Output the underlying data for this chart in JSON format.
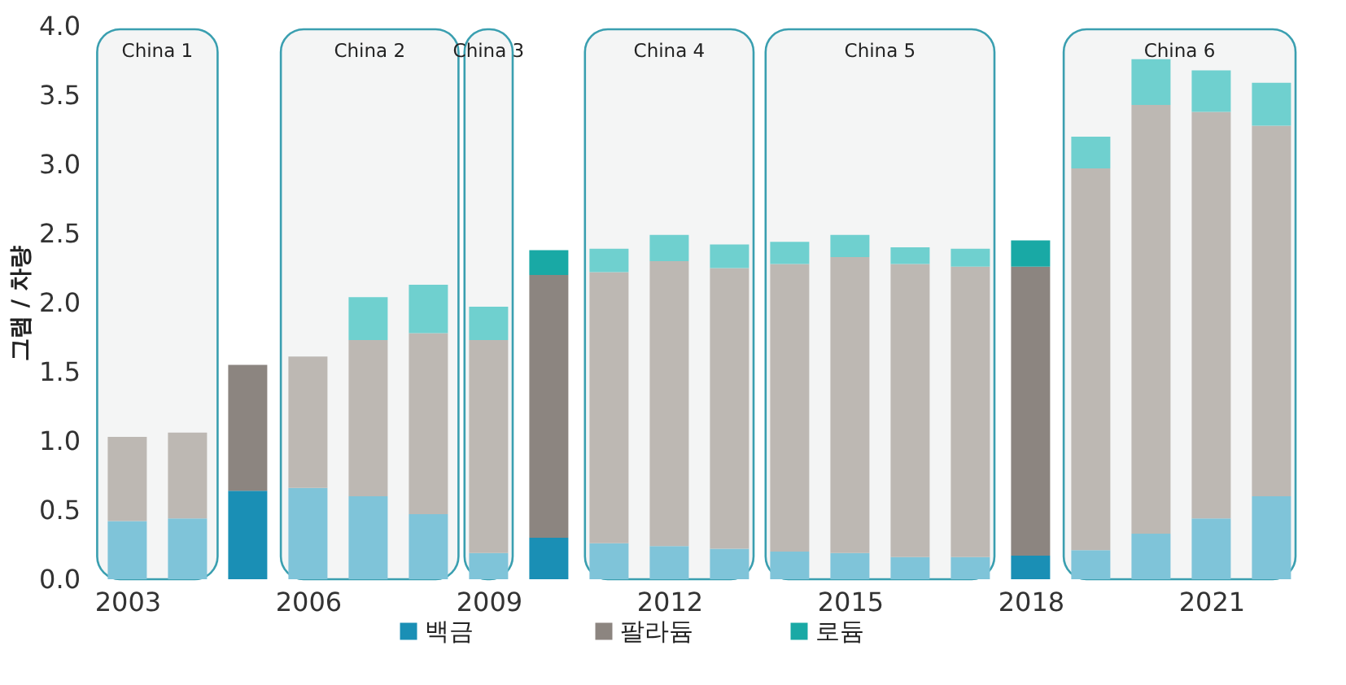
{
  "chart_data": {
    "type": "bar",
    "stacked": true,
    "ylabel": "그램 / 차량",
    "x": [
      2003,
      2004,
      2005,
      2006,
      2007,
      2008,
      2009,
      2010,
      2011,
      2012,
      2013,
      2014,
      2015,
      2016,
      2017,
      2018,
      2019,
      2020,
      2021,
      2022
    ],
    "xlim": [
      2002.4,
      2022.4
    ],
    "xticks": [
      2003,
      2006,
      2009,
      2012,
      2015,
      2018,
      2021
    ],
    "ylim": [
      0,
      4.0
    ],
    "yticks": [
      {
        "value": 0,
        "label": "0.0"
      },
      {
        "value": 0.5,
        "label": "0.5"
      },
      {
        "value": 1,
        "label": "1.0"
      },
      {
        "value": 1.5,
        "label": "1.5"
      },
      {
        "value": 2,
        "label": "2.0"
      },
      {
        "value": 2.5,
        "label": "2.5"
      },
      {
        "value": 3,
        "label": "3.0"
      },
      {
        "value": 3.5,
        "label": "3.5"
      },
      {
        "value": 4,
        "label": "4.0"
      }
    ],
    "series": [
      {
        "name": "백금",
        "color": "#1a8fb5",
        "colors": [
          "#7fc4d9",
          "#7fc4d9",
          "#1a8fb5",
          "#7fc4d9",
          "#7fc4d9",
          "#7fc4d9",
          "#7fc4d9",
          "#1a8fb5",
          "#7fc4d9",
          "#7fc4d9",
          "#7fc4d9",
          "#7fc4d9",
          "#7fc4d9",
          "#7fc4d9",
          "#7fc4d9",
          "#1a8fb5",
          "#7fc4d9",
          "#7fc4d9",
          "#7fc4d9",
          "#7fc4d9"
        ],
        "values": [
          0.42,
          0.44,
          0.64,
          0.66,
          0.6,
          0.47,
          0.19,
          0.3,
          0.26,
          0.24,
          0.22,
          0.2,
          0.19,
          0.16,
          0.16,
          0.17,
          0.21,
          0.33,
          0.44,
          0.6
        ]
      },
      {
        "name": "팔라듐",
        "color": "#8c8580",
        "colors": [
          "#bdb8b3",
          "#bdb8b3",
          "#8c8580",
          "#bdb8b3",
          "#bdb8b3",
          "#bdb8b3",
          "#bdb8b3",
          "#8c8580",
          "#bdb8b3",
          "#bdb8b3",
          "#bdb8b3",
          "#bdb8b3",
          "#bdb8b3",
          "#bdb8b3",
          "#bdb8b3",
          "#8c8580",
          "#bdb8b3",
          "#bdb8b3",
          "#bdb8b3",
          "#bdb8b3"
        ],
        "values": [
          0.61,
          0.62,
          0.91,
          0.95,
          1.13,
          1.31,
          1.54,
          1.9,
          1.96,
          2.06,
          2.03,
          2.08,
          2.14,
          2.12,
          2.1,
          2.09,
          2.76,
          3.1,
          2.94,
          2.68
        ]
      },
      {
        "name": "로듐",
        "color": "#19a9a5",
        "colors": [
          "#6fd0cf",
          "#6fd0cf",
          "#19a9a5",
          "#6fd0cf",
          "#6fd0cf",
          "#6fd0cf",
          "#6fd0cf",
          "#19a9a5",
          "#6fd0cf",
          "#6fd0cf",
          "#6fd0cf",
          "#6fd0cf",
          "#6fd0cf",
          "#6fd0cf",
          "#6fd0cf",
          "#19a9a5",
          "#6fd0cf",
          "#6fd0cf",
          "#6fd0cf",
          "#6fd0cf"
        ],
        "values": [
          0,
          0,
          0,
          0,
          0.31,
          0.35,
          0.24,
          0.18,
          0.17,
          0.19,
          0.17,
          0.16,
          0.16,
          0.12,
          0.13,
          0.19,
          0.23,
          0.33,
          0.3,
          0.31
        ]
      }
    ],
    "bands": [
      {
        "axis": "x",
        "from": 2002.5,
        "to": 2004.5,
        "label": "China 1",
        "color": "#3a9fb0"
      },
      {
        "axis": "x",
        "from": 2005.55,
        "to": 2008.5,
        "label": "China 2",
        "color": "#3a9fb0"
      },
      {
        "axis": "x",
        "from": 2008.6,
        "to": 2009.4,
        "label": "China 3",
        "color": "#3a9fb0"
      },
      {
        "axis": "x",
        "from": 2010.6,
        "to": 2013.4,
        "label": "China 4",
        "color": "#3a9fb0"
      },
      {
        "axis": "x",
        "from": 2013.6,
        "to": 2017.4,
        "label": "China 5",
        "color": "#3a9fb0"
      },
      {
        "axis": "x",
        "from": 2018.55,
        "to": 2022.4,
        "label": "China 6",
        "color": "#3a9fb0"
      }
    ],
    "legend": "bottom",
    "grid": false
  }
}
